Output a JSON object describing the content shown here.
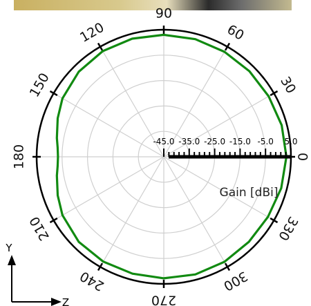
{
  "photo_strip": {
    "description_visible": false
  },
  "chart_data": {
    "type": "polar",
    "angle_unit": "deg",
    "angle_zero": "right",
    "angle_direction": "counterclockwise",
    "radial_range": [
      -45.0,
      5.0
    ],
    "radial_ticks": [
      "-45.0",
      "-35.0",
      "-25.0",
      "-15.0",
      "-5.0",
      "5.0"
    ],
    "radial_axis_label": "Gain [dBi]",
    "angular_tick_labels": [
      {
        "angle": 0,
        "label": "0"
      },
      {
        "angle": 30,
        "label": "30"
      },
      {
        "angle": 60,
        "label": "60"
      },
      {
        "angle": 90,
        "label": "90"
      },
      {
        "angle": 120,
        "label": "120"
      },
      {
        "angle": 150,
        "label": "150"
      },
      {
        "angle": 180,
        "label": "180"
      },
      {
        "angle": 210,
        "label": "210"
      },
      {
        "angle": 240,
        "label": "240"
      },
      {
        "angle": 270,
        "label": "270"
      },
      {
        "angle": 300,
        "label": "300"
      },
      {
        "angle": 330,
        "label": "330"
      }
    ],
    "grid": true,
    "series": [
      {
        "color": "#118a11",
        "angles": [
          0,
          15,
          30,
          45,
          60,
          75,
          90,
          105,
          120,
          135,
          150,
          160,
          170,
          175,
          180,
          185,
          190,
          200,
          210,
          225,
          240,
          255,
          270,
          285,
          300,
          315,
          330,
          345,
          360
        ],
        "gain_dbi": [
          3.2,
          3.0,
          2.6,
          2.6,
          2.7,
          2.9,
          3.0,
          3.1,
          3.0,
          2.3,
          1.0,
          -0.6,
          -2.3,
          -3.1,
          -3.4,
          -3.1,
          -2.3,
          -0.6,
          1.0,
          2.3,
          2.6,
          2.6,
          2.8,
          2.9,
          2.7,
          2.3,
          2.3,
          2.8,
          3.2
        ]
      }
    ]
  },
  "coordinate_axes": {
    "vertical_label": "Y",
    "horizontal_label": "Z"
  }
}
